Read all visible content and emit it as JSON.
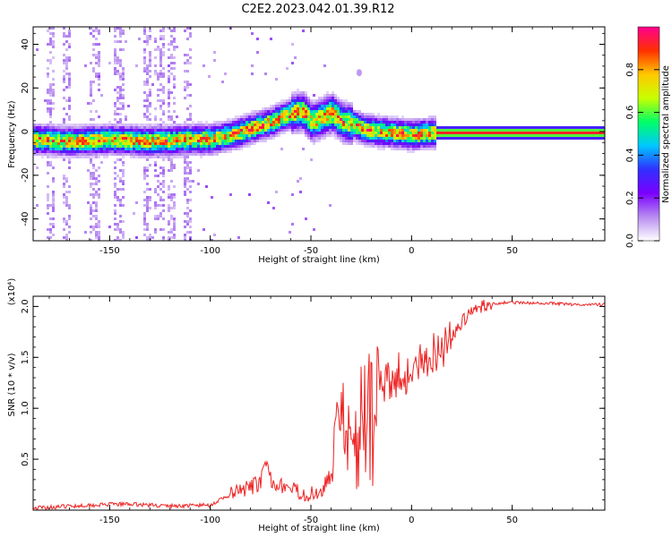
{
  "title": "C2E2.2023.042.01.39.R12",
  "chart_data": [
    {
      "type": "heatmap",
      "xlabel": "Height of straight line (km)",
      "ylabel": "Frequency (Hz)",
      "xlim": [
        -188,
        96
      ],
      "ylim": [
        -50,
        48
      ],
      "xticks": [
        -150,
        -100,
        -50,
        0,
        50
      ],
      "yticks": [
        -40,
        -20,
        0,
        20,
        40
      ],
      "colorbar": {
        "label": "Normalized spectral amplitude",
        "range": [
          0.0,
          1.0
        ],
        "ticks": [
          0.0,
          0.2,
          0.4,
          0.6,
          0.8
        ],
        "colors": [
          "#ffffff",
          "#b88cf0",
          "#7a00ff",
          "#3030ff",
          "#00c8ff",
          "#00ff66",
          "#c8ff00",
          "#ffc800",
          "#ff3000",
          "#ff0090"
        ]
      },
      "ridge": {
        "x": [
          -188,
          -170,
          -150,
          -130,
          -110,
          -100,
          -90,
          -80,
          -70,
          -60,
          -55,
          -50,
          -45,
          -40,
          -35,
          -30,
          -25,
          -20,
          -10,
          0,
          10,
          96
        ],
        "frequency": [
          -3,
          -4,
          -3,
          -4,
          -3,
          -3,
          -1,
          2,
          5,
          9,
          10,
          5,
          7,
          9,
          5,
          4,
          2,
          1,
          0,
          -1,
          0,
          0
        ]
      }
    },
    {
      "type": "line",
      "xlabel": "Height of straight line (km)",
      "ylabel": "SNR (10 * v/v)",
      "multiplier": "(x10⁴)",
      "xlim": [
        -188,
        96
      ],
      "ylim": [
        0,
        2.1
      ],
      "xticks": [
        -150,
        -100,
        -50,
        0,
        50
      ],
      "yticks": [
        0.5,
        1.0,
        1.5,
        2.0
      ],
      "series": [
        {
          "color": "#ee2222",
          "x": [
            -188,
            -160,
            -140,
            -120,
            -100,
            -90,
            -80,
            -75,
            -72,
            -70,
            -65,
            -60,
            -50,
            -45,
            -40,
            -35,
            -32,
            -30,
            -28,
            -25,
            -22,
            -20,
            -15,
            -10,
            -5,
            0,
            5,
            10,
            15,
            20,
            25,
            30,
            35,
            40,
            50,
            60,
            70,
            80,
            96
          ],
          "y": [
            0.02,
            0.05,
            0.06,
            0.04,
            0.05,
            0.15,
            0.22,
            0.28,
            0.45,
            0.3,
            0.25,
            0.2,
            0.15,
            0.2,
            0.35,
            0.8,
            0.85,
            0.9,
            0.95,
            1.0,
            1.05,
            1.1,
            1.2,
            1.3,
            1.35,
            1.3,
            1.45,
            1.55,
            1.6,
            1.7,
            1.85,
            1.95,
            2.0,
            2.03,
            2.04,
            2.03,
            2.03,
            2.02,
            2.02
          ]
        }
      ]
    }
  ]
}
